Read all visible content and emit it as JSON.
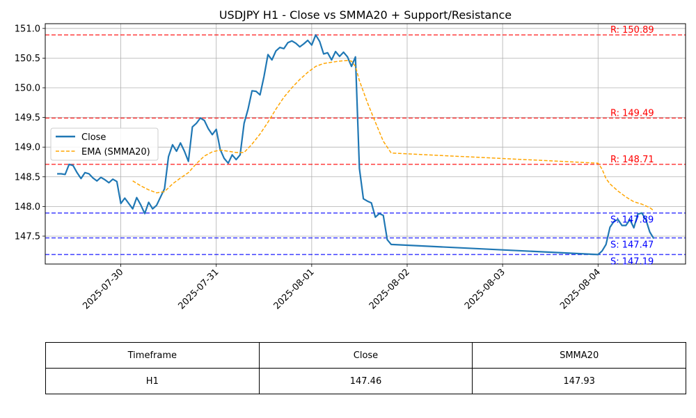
{
  "chart_data": {
    "type": "line",
    "title": "USDJPY H1 - Close vs SMMA20 + Support/Resistance",
    "xlabel": "",
    "ylabel": "",
    "x_range": [
      "2025-07-29 05:00",
      "2025-08-04 22:00"
    ],
    "ylim": [
      147.03,
      151.08
    ],
    "x_ticks": [
      "2025-07-30",
      "2025-07-31",
      "2025-08-01",
      "2025-08-02",
      "2025-08-03",
      "2025-08-04"
    ],
    "y_ticks": [
      147.5,
      148.0,
      148.5,
      149.0,
      149.5,
      150.0,
      150.5,
      151.0
    ],
    "grid": true,
    "legend_position": "upper-left",
    "series": [
      {
        "name": "Close",
        "style": "solid",
        "color": "#1f77b4",
        "points": [
          [
            "2025-07-29 08:00",
            148.55
          ],
          [
            "2025-07-29 09:00",
            148.55
          ],
          [
            "2025-07-29 10:00",
            148.54
          ],
          [
            "2025-07-29 11:00",
            148.71
          ],
          [
            "2025-07-29 12:00",
            148.69
          ],
          [
            "2025-07-29 13:00",
            148.57
          ],
          [
            "2025-07-29 14:00",
            148.47
          ],
          [
            "2025-07-29 15:00",
            148.57
          ],
          [
            "2025-07-29 16:00",
            148.55
          ],
          [
            "2025-07-29 17:00",
            148.48
          ],
          [
            "2025-07-29 18:00",
            148.43
          ],
          [
            "2025-07-29 19:00",
            148.49
          ],
          [
            "2025-07-29 20:00",
            148.45
          ],
          [
            "2025-07-29 21:00",
            148.4
          ],
          [
            "2025-07-29 22:00",
            148.46
          ],
          [
            "2025-07-29 23:00",
            148.42
          ],
          [
            "2025-07-30 00:00",
            148.05
          ],
          [
            "2025-07-30 01:00",
            148.14
          ],
          [
            "2025-07-30 02:00",
            148.05
          ],
          [
            "2025-07-30 03:00",
            147.96
          ],
          [
            "2025-07-30 04:00",
            148.15
          ],
          [
            "2025-07-30 05:00",
            148.03
          ],
          [
            "2025-07-30 06:00",
            147.88
          ],
          [
            "2025-07-30 07:00",
            148.07
          ],
          [
            "2025-07-30 08:00",
            147.96
          ],
          [
            "2025-07-30 09:00",
            148.02
          ],
          [
            "2025-07-30 10:00",
            148.16
          ],
          [
            "2025-07-30 11:00",
            148.3
          ],
          [
            "2025-07-30 12:00",
            148.84
          ],
          [
            "2025-07-30 13:00",
            149.04
          ],
          [
            "2025-07-30 14:00",
            148.93
          ],
          [
            "2025-07-30 15:00",
            149.07
          ],
          [
            "2025-07-30 16:00",
            148.93
          ],
          [
            "2025-07-30 17:00",
            148.76
          ],
          [
            "2025-07-30 18:00",
            149.34
          ],
          [
            "2025-07-30 19:00",
            149.4
          ],
          [
            "2025-07-30 20:00",
            149.49
          ],
          [
            "2025-07-30 21:00",
            149.45
          ],
          [
            "2025-07-30 22:00",
            149.31
          ],
          [
            "2025-07-30 23:00",
            149.21
          ],
          [
            "2025-07-31 00:00",
            149.3
          ],
          [
            "2025-07-31 01:00",
            148.96
          ],
          [
            "2025-07-31 02:00",
            148.81
          ],
          [
            "2025-07-31 03:00",
            148.73
          ],
          [
            "2025-07-31 04:00",
            148.87
          ],
          [
            "2025-07-31 05:00",
            148.79
          ],
          [
            "2025-07-31 06:00",
            148.87
          ],
          [
            "2025-07-31 07:00",
            149.4
          ],
          [
            "2025-07-31 08:00",
            149.64
          ],
          [
            "2025-07-31 09:00",
            149.95
          ],
          [
            "2025-07-31 10:00",
            149.94
          ],
          [
            "2025-07-31 11:00",
            149.88
          ],
          [
            "2025-07-31 12:00",
            150.19
          ],
          [
            "2025-07-31 13:00",
            150.56
          ],
          [
            "2025-07-31 14:00",
            150.47
          ],
          [
            "2025-07-31 15:00",
            150.62
          ],
          [
            "2025-07-31 16:00",
            150.68
          ],
          [
            "2025-07-31 17:00",
            150.66
          ],
          [
            "2025-07-31 18:00",
            150.76
          ],
          [
            "2025-07-31 19:00",
            150.79
          ],
          [
            "2025-07-31 20:00",
            150.75
          ],
          [
            "2025-07-31 21:00",
            150.69
          ],
          [
            "2025-07-31 22:00",
            150.74
          ],
          [
            "2025-07-31 23:00",
            150.8
          ],
          [
            "2025-08-01 00:00",
            150.72
          ],
          [
            "2025-08-01 01:00",
            150.89
          ],
          [
            "2025-08-01 02:00",
            150.78
          ],
          [
            "2025-08-01 03:00",
            150.57
          ],
          [
            "2025-08-01 04:00",
            150.59
          ],
          [
            "2025-08-01 05:00",
            150.47
          ],
          [
            "2025-08-01 06:00",
            150.61
          ],
          [
            "2025-08-01 07:00",
            150.53
          ],
          [
            "2025-08-01 08:00",
            150.6
          ],
          [
            "2025-08-01 09:00",
            150.52
          ],
          [
            "2025-08-01 10:00",
            150.36
          ],
          [
            "2025-08-01 11:00",
            150.52
          ],
          [
            "2025-08-01 12:00",
            148.64
          ],
          [
            "2025-08-01 13:00",
            148.13
          ],
          [
            "2025-08-01 14:00",
            148.09
          ],
          [
            "2025-08-01 15:00",
            148.06
          ],
          [
            "2025-08-01 16:00",
            147.82
          ],
          [
            "2025-08-01 17:00",
            147.88
          ],
          [
            "2025-08-01 18:00",
            147.85
          ],
          [
            "2025-08-01 19:00",
            147.44
          ],
          [
            "2025-08-01 20:00",
            147.36
          ],
          [
            "2025-08-04 00:00",
            147.19
          ],
          [
            "2025-08-04 01:00",
            147.25
          ],
          [
            "2025-08-04 02:00",
            147.36
          ],
          [
            "2025-08-04 03:00",
            147.65
          ],
          [
            "2025-08-04 04:00",
            147.75
          ],
          [
            "2025-08-04 05:00",
            147.78
          ],
          [
            "2025-08-04 06:00",
            147.68
          ],
          [
            "2025-08-04 07:00",
            147.68
          ],
          [
            "2025-08-04 08:00",
            147.78
          ],
          [
            "2025-08-04 09:00",
            147.64
          ],
          [
            "2025-08-04 10:00",
            147.87
          ],
          [
            "2025-08-04 11:00",
            147.89
          ],
          [
            "2025-08-04 12:00",
            147.78
          ],
          [
            "2025-08-04 13:00",
            147.57
          ],
          [
            "2025-08-04 14:00",
            147.46
          ]
        ]
      },
      {
        "name": "EMA (SMMA20)",
        "style": "dashed",
        "color": "#ffa500",
        "points": [
          [
            "2025-07-30 03:00",
            148.43
          ],
          [
            "2025-07-30 05:00",
            148.35
          ],
          [
            "2025-07-30 07:00",
            148.28
          ],
          [
            "2025-07-30 09:00",
            148.23
          ],
          [
            "2025-07-30 11:00",
            148.25
          ],
          [
            "2025-07-30 13:00",
            148.38
          ],
          [
            "2025-07-30 15:00",
            148.48
          ],
          [
            "2025-07-30 17:00",
            148.57
          ],
          [
            "2025-07-30 19:00",
            148.72
          ],
          [
            "2025-07-30 21:00",
            148.85
          ],
          [
            "2025-07-30 23:00",
            148.92
          ],
          [
            "2025-07-31 01:00",
            148.95
          ],
          [
            "2025-07-31 03:00",
            148.93
          ],
          [
            "2025-07-31 05:00",
            148.91
          ],
          [
            "2025-07-31 07:00",
            148.91
          ],
          [
            "2025-07-31 09:00",
            149.05
          ],
          [
            "2025-07-31 11:00",
            149.22
          ],
          [
            "2025-07-31 13:00",
            149.42
          ],
          [
            "2025-07-31 15:00",
            149.64
          ],
          [
            "2025-07-31 17:00",
            149.84
          ],
          [
            "2025-07-31 19:00",
            150.0
          ],
          [
            "2025-07-31 21:00",
            150.14
          ],
          [
            "2025-07-31 23:00",
            150.26
          ],
          [
            "2025-08-01 01:00",
            150.36
          ],
          [
            "2025-08-01 03:00",
            150.41
          ],
          [
            "2025-08-01 05:00",
            150.43
          ],
          [
            "2025-08-01 07:00",
            150.45
          ],
          [
            "2025-08-01 09:00",
            150.46
          ],
          [
            "2025-08-01 10:00",
            150.45
          ],
          [
            "2025-08-01 11:00",
            150.36
          ],
          [
            "2025-08-01 12:00",
            150.12
          ],
          [
            "2025-08-01 14:00",
            149.75
          ],
          [
            "2025-08-01 16:00",
            149.42
          ],
          [
            "2025-08-01 18:00",
            149.1
          ],
          [
            "2025-08-01 20:00",
            148.9
          ],
          [
            "2025-08-04 00:00",
            148.73
          ],
          [
            "2025-08-04 01:00",
            148.63
          ],
          [
            "2025-08-04 02:00",
            148.47
          ],
          [
            "2025-08-04 03:00",
            148.38
          ],
          [
            "2025-08-04 05:00",
            148.26
          ],
          [
            "2025-08-04 07:00",
            148.16
          ],
          [
            "2025-08-04 09:00",
            148.08
          ],
          [
            "2025-08-04 11:00",
            148.04
          ],
          [
            "2025-08-04 13:00",
            147.98
          ],
          [
            "2025-08-04 14:00",
            147.93
          ]
        ]
      }
    ],
    "levels": [
      {
        "kind": "resistance",
        "value": 150.89,
        "label": "R: 150.89",
        "color": "#ff0000"
      },
      {
        "kind": "resistance",
        "value": 149.49,
        "label": "R: 149.49",
        "color": "#ff0000"
      },
      {
        "kind": "resistance",
        "value": 148.71,
        "label": "R: 148.71",
        "color": "#ff0000"
      },
      {
        "kind": "support",
        "value": 147.89,
        "label": "S: 147.89",
        "color": "#0000ff"
      },
      {
        "kind": "support",
        "value": 147.47,
        "label": "S: 147.47",
        "color": "#0000ff"
      },
      {
        "kind": "support",
        "value": 147.19,
        "label": "S: 147.19",
        "color": "#0000ff"
      }
    ]
  },
  "table": {
    "headers": [
      "Timeframe",
      "Close",
      "SMMA20"
    ],
    "rows": [
      [
        "H1",
        "147.46",
        "147.93"
      ]
    ]
  }
}
